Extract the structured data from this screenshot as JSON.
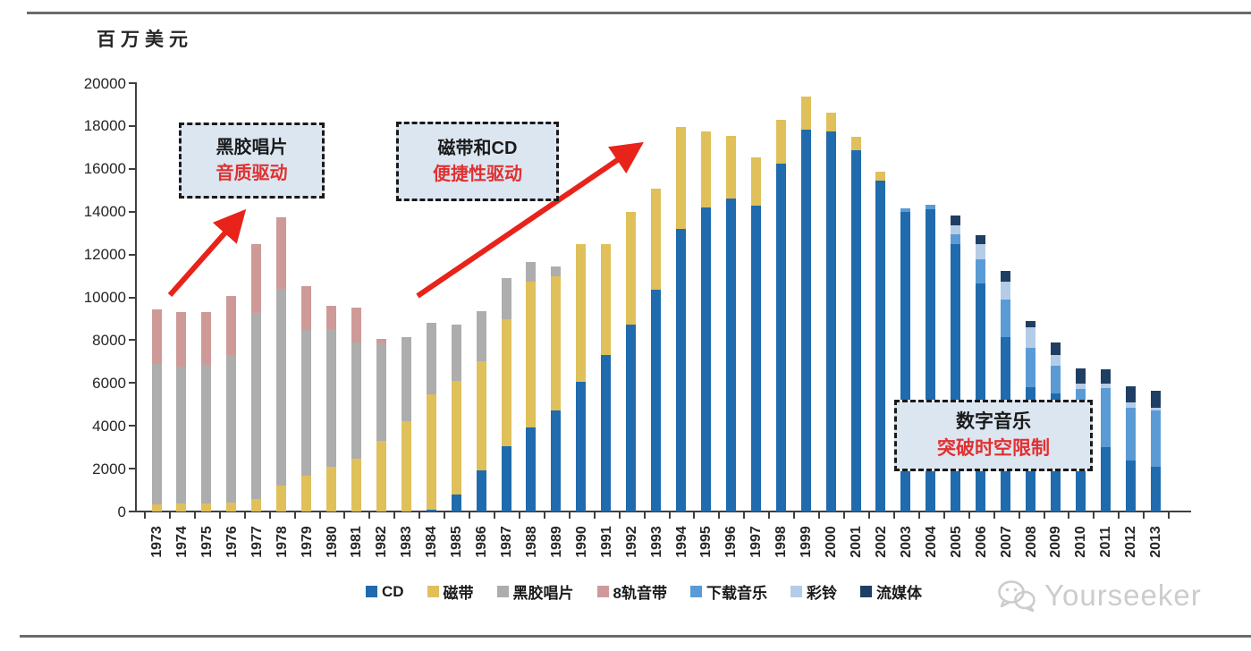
{
  "page": {
    "unit_label": "百万美元",
    "watermark": "Yourseeker"
  },
  "annotations": [
    {
      "title": "黑胶唱片",
      "subtitle": "音质驱动"
    },
    {
      "title": "磁带和CD",
      "subtitle": "便捷性驱动"
    },
    {
      "title": "数字音乐",
      "subtitle": "突破时空限制"
    }
  ],
  "colors": {
    "cd": "#1f6bad",
    "cassette": "#dfc05a",
    "vinyl": "#adadad",
    "eight_track": "#ce9a98",
    "download": "#5b9bd5",
    "ringtone": "#b5cce7",
    "streaming": "#1f3e63",
    "arrow_red": "#e8231a",
    "annotation_bg": "#dce6f1"
  },
  "chart_data": {
    "type": "bar",
    "stacked": true,
    "title": "",
    "xlabel": "",
    "ylabel": "百万美元",
    "ylim": [
      0,
      20000
    ],
    "y_tick_step": 2000,
    "grid": false,
    "legend_position": "bottom",
    "categories": [
      1973,
      1974,
      1975,
      1976,
      1977,
      1978,
      1979,
      1980,
      1981,
      1982,
      1983,
      1984,
      1985,
      1986,
      1987,
      1988,
      1989,
      1990,
      1991,
      1992,
      1993,
      1994,
      1995,
      1996,
      1997,
      1998,
      1999,
      2000,
      2001,
      2002,
      2003,
      2004,
      2005,
      2006,
      2007,
      2008,
      2009,
      2010,
      2011,
      2012,
      2013
    ],
    "series": [
      {
        "name": "CD",
        "color": "#1f6bad",
        "values": [
          0,
          0,
          0,
          0,
          0,
          0,
          0,
          0,
          0,
          0,
          0,
          80,
          790,
          1900,
          3050,
          3930,
          4720,
          6050,
          7310,
          8730,
          10360,
          13200,
          14200,
          14620,
          14280,
          16240,
          17830,
          17740,
          16870,
          15450,
          14000,
          14100,
          12480,
          10650,
          8140,
          5800,
          5500,
          4230,
          3000,
          2400,
          2100
        ]
      },
      {
        "name": "磁带",
        "color": "#dfc05a",
        "values": [
          350,
          380,
          380,
          420,
          600,
          1200,
          1670,
          2100,
          2450,
          3300,
          4200,
          5400,
          5300,
          5100,
          5930,
          6800,
          6260,
          6440,
          5190,
          5270,
          4720,
          4760,
          3550,
          2920,
          2260,
          2050,
          1540,
          880,
          620,
          410,
          0,
          0,
          0,
          0,
          0,
          0,
          0,
          0,
          0,
          0,
          0
        ]
      },
      {
        "name": "黑胶唱片",
        "color": "#adadad",
        "values": [
          6550,
          6400,
          6470,
          6890,
          8670,
          9200,
          6810,
          6400,
          5450,
          4550,
          3950,
          3350,
          2650,
          2350,
          1920,
          920,
          460,
          0,
          0,
          0,
          0,
          0,
          0,
          0,
          0,
          0,
          0,
          0,
          0,
          0,
          0,
          0,
          0,
          0,
          0,
          0,
          0,
          0,
          0,
          0,
          0
        ]
      },
      {
        "name": "8轨音带",
        "color": "#ce9a98",
        "values": [
          2550,
          2530,
          2460,
          2750,
          3210,
          3340,
          2040,
          1100,
          1600,
          200,
          0,
          0,
          0,
          0,
          0,
          0,
          0,
          0,
          0,
          0,
          0,
          0,
          0,
          0,
          0,
          0,
          0,
          0,
          0,
          0,
          0,
          0,
          0,
          0,
          0,
          0,
          0,
          0,
          0,
          0,
          0
        ]
      },
      {
        "name": "下载音乐",
        "color": "#5b9bd5",
        "values": [
          0,
          0,
          0,
          0,
          0,
          0,
          0,
          0,
          0,
          0,
          0,
          0,
          0,
          0,
          0,
          0,
          0,
          0,
          0,
          0,
          0,
          0,
          0,
          0,
          0,
          0,
          0,
          0,
          0,
          0,
          150,
          220,
          460,
          1130,
          1750,
          1850,
          1290,
          1500,
          2750,
          2450,
          2600
        ]
      },
      {
        "name": "彩铃",
        "color": "#b5cce7",
        "values": [
          0,
          0,
          0,
          0,
          0,
          0,
          0,
          0,
          0,
          0,
          0,
          0,
          0,
          0,
          0,
          0,
          0,
          0,
          0,
          0,
          0,
          0,
          0,
          0,
          0,
          0,
          0,
          0,
          0,
          0,
          0,
          0,
          420,
          700,
          840,
          960,
          500,
          250,
          220,
          250,
          150
        ]
      },
      {
        "name": "流媒体",
        "color": "#1f3e63",
        "values": [
          0,
          0,
          0,
          0,
          0,
          0,
          0,
          0,
          0,
          0,
          0,
          0,
          0,
          0,
          0,
          0,
          0,
          0,
          0,
          0,
          0,
          0,
          0,
          0,
          0,
          0,
          0,
          0,
          0,
          0,
          0,
          0,
          460,
          440,
          490,
          280,
          600,
          700,
          650,
          750,
          790
        ]
      }
    ]
  }
}
